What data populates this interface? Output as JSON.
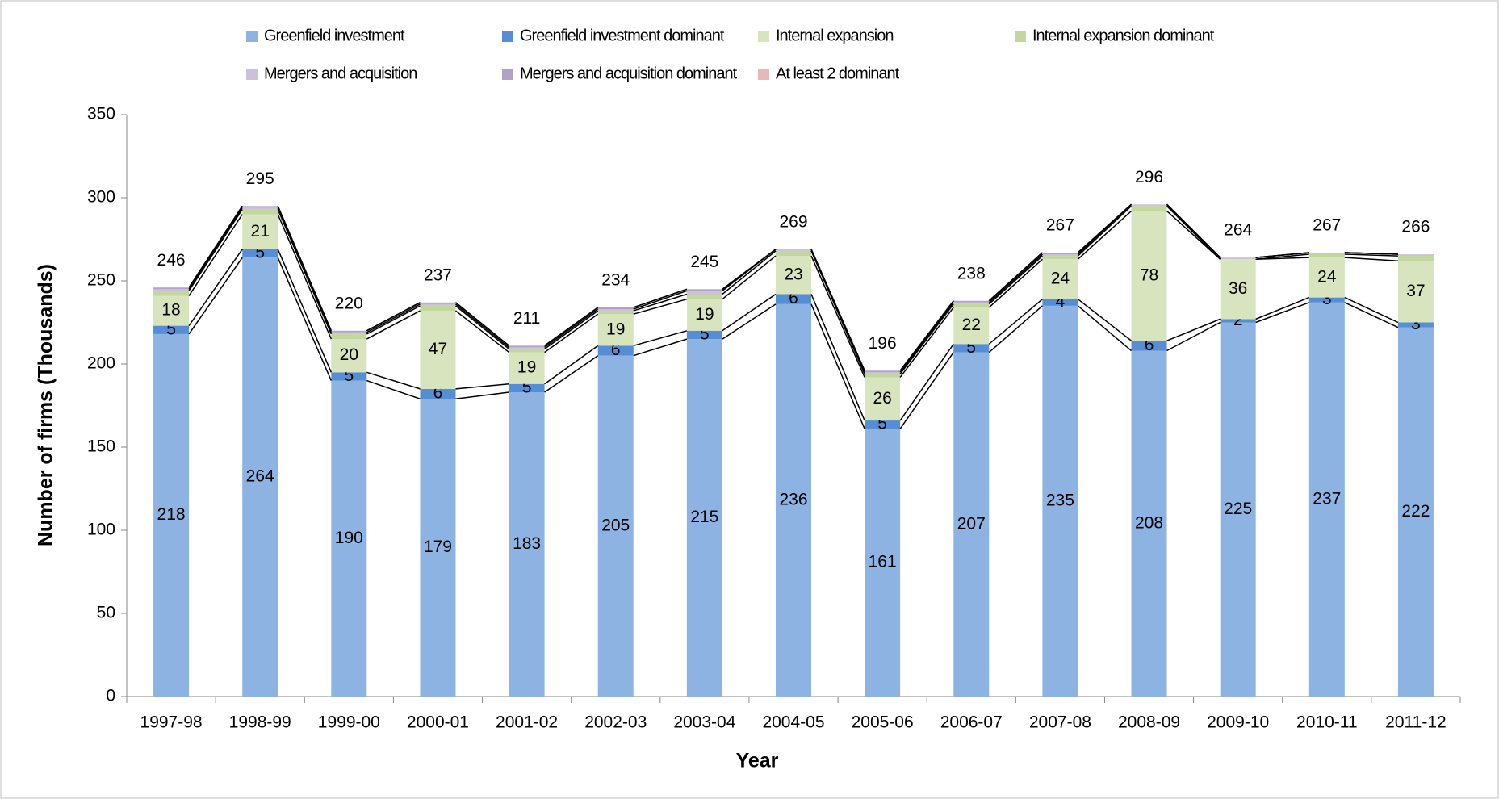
{
  "chart_data": {
    "type": "stacked_bar",
    "x_label": "Year",
    "y_label": "Number of firms (Thousands)",
    "categories": [
      "1997-98",
      "1998-99",
      "1999-00",
      "2000-01",
      "2001-02",
      "2002-03",
      "2003-04",
      "2004-05",
      "2005-06",
      "2006-07",
      "2007-08",
      "2008-09",
      "2009-10",
      "2010-11",
      "2011-12"
    ],
    "series": [
      {
        "name": "Greenfield investment",
        "color": "#8db3e2",
        "labels": true,
        "values": [
          218,
          264,
          190,
          179,
          183,
          205,
          215,
          236,
          161,
          207,
          235,
          208,
          225,
          237,
          222
        ]
      },
      {
        "name": "Greenfield investment dominant",
        "color": "#558ed5",
        "labels": true,
        "values": [
          5,
          5,
          5,
          6,
          5,
          6,
          5,
          6,
          5,
          5,
          4,
          6,
          2,
          3,
          3
        ]
      },
      {
        "name": "Internal expansion",
        "color": "#d7e4bd",
        "labels": true,
        "values": [
          18,
          21,
          20,
          47,
          19,
          19,
          19,
          23,
          26,
          22,
          24,
          78,
          36,
          24,
          37
        ]
      },
      {
        "name": "Internal expansion dominant",
        "color": "#c3d69b",
        "labels": false,
        "values": [
          3,
          3,
          3,
          3,
          2,
          2,
          3,
          3,
          2,
          2,
          2,
          3,
          0,
          2,
          3
        ]
      },
      {
        "name": "Mergers and acquisition",
        "color": "#ccc1da",
        "labels": false,
        "values": [
          1,
          1,
          1,
          1,
          1,
          1,
          2,
          1,
          1,
          1,
          1,
          1,
          1,
          1,
          1
        ]
      },
      {
        "name": "Mergers and acquisition dominant",
        "color": "#b3a2c7",
        "labels": false,
        "values": [
          1,
          1,
          1,
          1,
          1,
          1,
          1,
          0,
          1,
          1,
          1,
          0,
          0,
          0,
          0
        ]
      },
      {
        "name": "At least 2 dominant",
        "color": "#e6b9b8",
        "labels": false,
        "values": [
          0,
          0,
          0,
          0,
          0,
          0,
          0,
          0,
          0,
          0,
          0,
          0,
          0,
          0,
          0
        ]
      }
    ],
    "totals": [
      246,
      295,
      220,
      237,
      211,
      234,
      245,
      269,
      196,
      238,
      267,
      296,
      264,
      267,
      266
    ],
    "ylim": [
      0,
      350
    ],
    "yticks": [
      0,
      50,
      100,
      150,
      200,
      250,
      300,
      350
    ],
    "connector_lines": true
  }
}
